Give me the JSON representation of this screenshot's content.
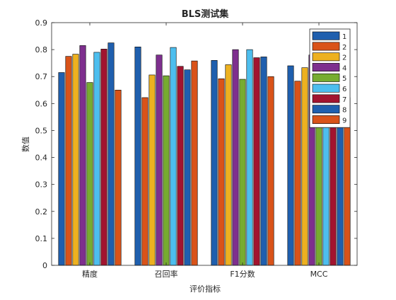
{
  "chart_data": {
    "type": "bar",
    "title": "BLS测试集",
    "xlabel": "评价指标",
    "ylabel": "数值",
    "ylim": [
      0,
      0.9
    ],
    "yticks": [
      "0",
      "0.1",
      "0.2",
      "0.3",
      "0.4",
      "0.5",
      "0.6",
      "0.7",
      "0.8",
      "0.9"
    ],
    "categories": [
      "精度",
      "召回率",
      "F1分数",
      "MCC"
    ],
    "grid": false,
    "legend_position": "top-right",
    "series": [
      {
        "name": "1",
        "color": "#1f5fae",
        "values": [
          0.715,
          0.81,
          0.76,
          0.74
        ]
      },
      {
        "name": "2",
        "color": "#d95319",
        "values": [
          0.775,
          0.622,
          0.692,
          0.683
        ]
      },
      {
        "name": "2",
        "color": "#edb120",
        "values": [
          0.783,
          0.706,
          0.744,
          0.733
        ]
      },
      {
        "name": "4",
        "color": "#7e2f8e",
        "values": [
          0.815,
          0.78,
          0.8,
          0.78
        ]
      },
      {
        "name": "5",
        "color": "#77ac30",
        "values": [
          0.678,
          0.703,
          0.69,
          0.68
        ]
      },
      {
        "name": "6",
        "color": "#4dbeee",
        "values": [
          0.79,
          0.808,
          0.8,
          0.79
        ]
      },
      {
        "name": "7",
        "color": "#a2142f",
        "values": [
          0.802,
          0.738,
          0.77,
          0.76
        ]
      },
      {
        "name": "8",
        "color": "#1f5fae",
        "values": [
          0.825,
          0.725,
          0.773,
          0.765
        ]
      },
      {
        "name": "9",
        "color": "#d95319",
        "values": [
          0.65,
          0.758,
          0.7,
          0.622
        ]
      }
    ]
  }
}
